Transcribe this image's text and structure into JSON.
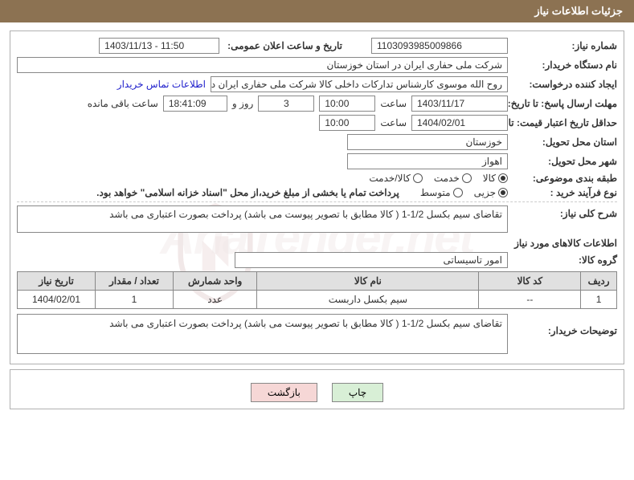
{
  "header": {
    "title": "جزئیات اطلاعات نیاز"
  },
  "watermark": "AriaTender.net",
  "fields": {
    "need_no_label": "شماره نیاز:",
    "need_no": "1103093985009866",
    "announce_label": "تاریخ و ساعت اعلان عمومی:",
    "announce_value": "1403/11/13 - 11:50",
    "buyer_label": "نام دستگاه خریدار:",
    "buyer_value": "شرکت ملی حفاری ایران در استان خوزستان",
    "requester_label": "ایجاد کننده درخواست:",
    "requester_value": "روح الله موسوی کارشناس تدارکات داخلی کالا شرکت ملی حفاری ایران در استان",
    "contact_link": "اطلاعات تماس خریدار",
    "reply_deadline_label": "مهلت ارسال پاسخ: تا تاریخ:",
    "reply_deadline_date": "1403/11/17",
    "hour_label": "ساعت",
    "reply_deadline_time": "10:00",
    "days_remaining": "3",
    "days_word": "روز و",
    "hours_remaining": "18:41:09",
    "remaining_suffix": "ساعت باقی مانده",
    "validity_label": "حداقل تاریخ اعتبار قیمت: تا تاریخ:",
    "validity_date": "1404/02/01",
    "validity_time": "10:00",
    "province_label": "استان محل تحویل:",
    "province_value": "خوزستان",
    "city_label": "شهر محل تحویل:",
    "city_value": "اهواز",
    "subject_class_label": "طبقه بندی موضوعی:",
    "class_opts": {
      "goods": "کالا",
      "service": "خدمت",
      "goods_service": "کالا/خدمت"
    },
    "purchase_type_label": "نوع فرآیند خرید :",
    "purchase_opts": {
      "partial": "جزیی",
      "medium": "متوسط"
    },
    "purchase_note": "پرداخت تمام یا بخشی از مبلغ خرید،از محل \"اسناد خزانه اسلامی\" خواهد بود.",
    "need_desc_label": "شرح کلی نیاز:",
    "need_desc_value": "تقاضای سیم بکسل 1/2-1 ( کالا مطابق با تصویر پیوست می باشد) پرداخت بصورت اعتباری می باشد",
    "goods_section_title": "اطلاعات کالاهای مورد نیاز",
    "goods_group_label": "گروه کالا:",
    "goods_group_value": "امور تاسیساتی",
    "table": {
      "headers": [
        "ردیف",
        "کد کالا",
        "نام کالا",
        "واحد شمارش",
        "تعداد / مقدار",
        "تاریخ نیاز"
      ],
      "rows": [
        [
          "1",
          "--",
          "سیم بکسل داربست",
          "عدد",
          "1",
          "1404/02/01"
        ]
      ],
      "col_widths": [
        "6%",
        "17%",
        "37%",
        "14%",
        "13%",
        "13%"
      ]
    },
    "buyer_notes_label": "توضیحات خریدار:",
    "buyer_notes_value": "تقاضای سیم بکسل 1/2-1 ( کالا مطابق با تصویر پیوست می باشد) پرداخت بصورت اعتباری می باشد"
  },
  "buttons": {
    "print": "چاپ",
    "back": "بازگشت"
  },
  "colors": {
    "header_bg": "#8c7252",
    "link": "#2020cc",
    "btn_print_bg": "#d8efd6",
    "btn_back_bg": "#f6d7d6",
    "th_bg": "#e0e0e0"
  }
}
